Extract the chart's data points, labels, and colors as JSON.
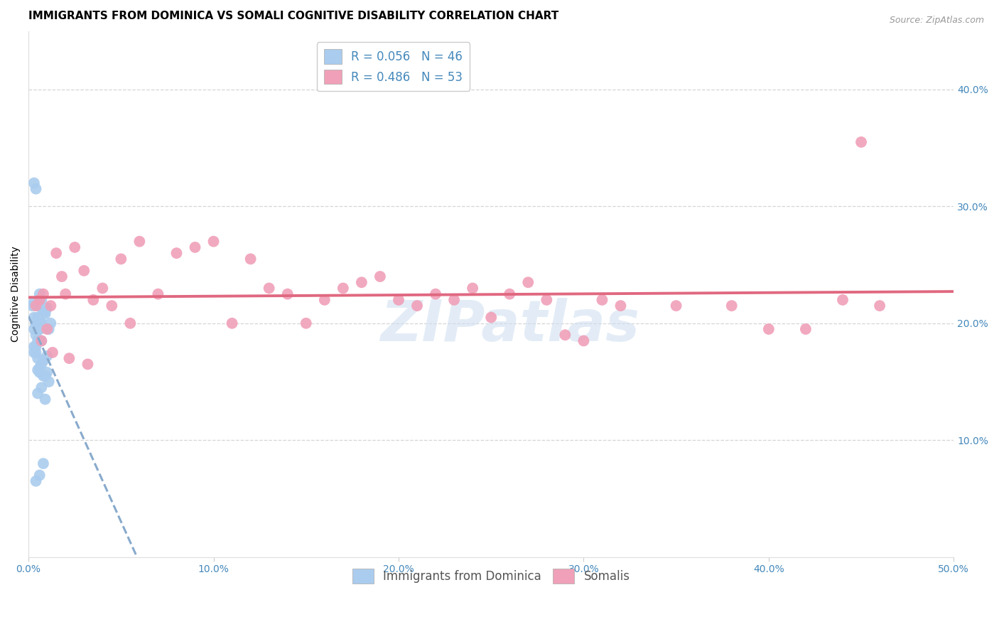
{
  "title": "IMMIGRANTS FROM DOMINICA VS SOMALI COGNITIVE DISABILITY CORRELATION CHART",
  "source": "Source: ZipAtlas.com",
  "ylabel": "Cognitive Disability",
  "xlim": [
    0.0,
    0.5
  ],
  "ylim": [
    0.0,
    0.45
  ],
  "xticks": [
    0.0,
    0.1,
    0.2,
    0.3,
    0.4,
    0.5
  ],
  "yticks": [
    0.1,
    0.2,
    0.3,
    0.4
  ],
  "ytick_labels": [
    "10.0%",
    "20.0%",
    "30.0%",
    "40.0%"
  ],
  "xtick_labels": [
    "0.0%",
    "10.0%",
    "20.0%",
    "30.0%",
    "40.0%",
    "50.0%"
  ],
  "grid_color": "#cccccc",
  "background_color": "#ffffff",
  "watermark": "ZIPatlas",
  "series": [
    {
      "name": "Immigrants from Dominica",
      "R": 0.056,
      "N": 46,
      "color": "#aaccee",
      "line_color": "#88aacc",
      "line_style": "--",
      "x": [
        0.005,
        0.007,
        0.003,
        0.004,
        0.006,
        0.008,
        0.002,
        0.003,
        0.005,
        0.007,
        0.009,
        0.01,
        0.011,
        0.012,
        0.006,
        0.008,
        0.003,
        0.004,
        0.005,
        0.007,
        0.009,
        0.006,
        0.004,
        0.003,
        0.008,
        0.01,
        0.007,
        0.005,
        0.006,
        0.009,
        0.011,
        0.004,
        0.003,
        0.007,
        0.005,
        0.006,
        0.008,
        0.01,
        0.004,
        0.003,
        0.005,
        0.007,
        0.009,
        0.006,
        0.004,
        0.008
      ],
      "y": [
        0.215,
        0.22,
        0.205,
        0.2,
        0.195,
        0.21,
        0.215,
        0.218,
        0.205,
        0.2,
        0.208,
        0.213,
        0.195,
        0.2,
        0.225,
        0.21,
        0.195,
        0.19,
        0.185,
        0.2,
        0.21,
        0.195,
        0.18,
        0.175,
        0.168,
        0.172,
        0.165,
        0.16,
        0.158,
        0.155,
        0.15,
        0.175,
        0.18,
        0.185,
        0.17,
        0.162,
        0.155,
        0.158,
        0.315,
        0.32,
        0.14,
        0.145,
        0.135,
        0.07,
        0.065,
        0.08
      ]
    },
    {
      "name": "Somalis",
      "R": 0.486,
      "N": 53,
      "color": "#f0a0b8",
      "line_color": "#e06880",
      "line_style": "-",
      "x": [
        0.004,
        0.006,
        0.008,
        0.01,
        0.012,
        0.015,
        0.018,
        0.02,
        0.025,
        0.03,
        0.035,
        0.04,
        0.045,
        0.05,
        0.06,
        0.07,
        0.08,
        0.09,
        0.1,
        0.11,
        0.12,
        0.13,
        0.14,
        0.15,
        0.16,
        0.17,
        0.18,
        0.19,
        0.2,
        0.21,
        0.22,
        0.23,
        0.24,
        0.25,
        0.26,
        0.27,
        0.28,
        0.29,
        0.3,
        0.31,
        0.32,
        0.35,
        0.38,
        0.4,
        0.42,
        0.44,
        0.46,
        0.007,
        0.013,
        0.022,
        0.032,
        0.055,
        0.45
      ],
      "y": [
        0.215,
        0.22,
        0.225,
        0.195,
        0.215,
        0.26,
        0.24,
        0.225,
        0.265,
        0.245,
        0.22,
        0.23,
        0.215,
        0.255,
        0.27,
        0.225,
        0.26,
        0.265,
        0.27,
        0.2,
        0.255,
        0.23,
        0.225,
        0.2,
        0.22,
        0.23,
        0.235,
        0.24,
        0.22,
        0.215,
        0.225,
        0.22,
        0.23,
        0.205,
        0.225,
        0.235,
        0.22,
        0.19,
        0.185,
        0.22,
        0.215,
        0.215,
        0.215,
        0.195,
        0.195,
        0.22,
        0.215,
        0.185,
        0.175,
        0.17,
        0.165,
        0.2,
        0.355
      ]
    }
  ],
  "title_fontsize": 11,
  "axis_label_fontsize": 10,
  "tick_fontsize": 10,
  "tick_color": "#4488bb",
  "legend_fontsize": 12,
  "source_fontsize": 9
}
